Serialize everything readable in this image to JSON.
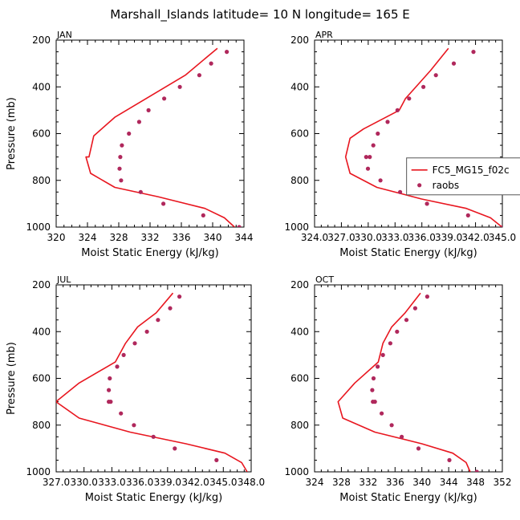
{
  "figure_title": "Marshall_Islands   latitude= 10 N longitude= 165 E",
  "colors": {
    "model": "#e8161f",
    "obs": "#b0285c",
    "axis": "#000000",
    "legend_border": "#555555"
  },
  "legend": {
    "model_label": "FC5_MG15_f02c",
    "obs_label": "raobs",
    "placement": "right-middle of APR panel (clipped)"
  },
  "chart_data": [
    {
      "type": "line",
      "title": "JAN",
      "xlabel": "Moist Static Energy (kJ/kg)",
      "ylabel": "Pressure (mb)",
      "xlim": [
        320,
        344
      ],
      "ylim": [
        1000,
        200
      ],
      "xticks": [
        "320",
        "324",
        "328",
        "332",
        "336",
        "340",
        "344"
      ],
      "yticks": [
        "200",
        "400",
        "600",
        "800",
        "1000"
      ],
      "grid": false,
      "series": [
        {
          "name": "FC5_MG15_f02c",
          "style": "line",
          "x": [
            340.6,
            336.5,
            331.5,
            327.5,
            324.8,
            324.2,
            323.8,
            324.4,
            327.5,
            333.0,
            339.0,
            341.5,
            342.8
          ],
          "y": [
            235,
            350,
            450,
            530,
            610,
            700,
            700,
            770,
            830,
            870,
            920,
            960,
            1000
          ]
        },
        {
          "name": "raobs",
          "style": "markers",
          "x": [
            341.8,
            339.8,
            338.3,
            335.8,
            333.8,
            331.8,
            330.6,
            329.3,
            328.4,
            328.2,
            328.1,
            328.3,
            330.8,
            333.7,
            338.8,
            343.4
          ],
          "y": [
            250,
            300,
            350,
            400,
            450,
            500,
            550,
            600,
            650,
            700,
            750,
            800,
            850,
            900,
            950,
            1000
          ]
        }
      ]
    },
    {
      "type": "line",
      "title": "APR",
      "xlabel": "Moist Static Energy (kJ/kg)",
      "ylabel": "",
      "xlim": [
        324.03,
        345.03
      ],
      "ylim": [
        1000,
        200
      ],
      "xticks": [
        "324.0",
        "327.0",
        "330.0",
        "333.0",
        "336.0",
        "339.0",
        "342.0",
        "345.0"
      ],
      "yticks": [
        "200",
        "400",
        "600",
        "800",
        "1000"
      ],
      "grid": false,
      "series": [
        {
          "name": "FC5_MG15_f02c",
          "style": "line",
          "x": [
            339.0,
            337.0,
            334.2,
            333.5,
            329.5,
            328.0,
            327.5,
            328.0,
            331.0,
            336.0,
            341.0,
            343.7,
            345.0
          ],
          "y": [
            235,
            330,
            450,
            500,
            580,
            620,
            700,
            770,
            830,
            880,
            920,
            960,
            1000
          ]
        },
        {
          "name": "raobs",
          "style": "markers",
          "x": [
            341.8,
            339.6,
            337.6,
            336.2,
            334.6,
            333.3,
            332.2,
            331.1,
            330.6,
            330.2,
            329.8,
            330.0,
            331.4,
            333.6,
            336.6,
            341.2,
            345.1
          ],
          "y": [
            250,
            300,
            350,
            400,
            450,
            500,
            550,
            600,
            650,
            700,
            700,
            750,
            800,
            850,
            900,
            950,
            1000
          ]
        }
      ]
    },
    {
      "type": "line",
      "title": "JUL",
      "xlabel": "Moist Static Energy (kJ/kg)",
      "ylabel": "Pressure (mb)",
      "xlim": [
        327.03,
        348.03
      ],
      "ylim": [
        1000,
        200
      ],
      "xticks": [
        "327.0",
        "330.0",
        "333.0",
        "336.0",
        "339.0",
        "342.0",
        "345.0",
        "348.0"
      ],
      "yticks": [
        "200",
        "400",
        "600",
        "800",
        "1000"
      ],
      "grid": false,
      "series": [
        {
          "name": "FC5_MG15_f02c",
          "style": "line",
          "x": [
            339.6,
            337.8,
            335.8,
            334.5,
            333.4,
            329.5,
            327.0,
            329.5,
            335.0,
            341.0,
            345.2,
            347.0,
            347.6
          ],
          "y": [
            235,
            320,
            380,
            450,
            530,
            620,
            700,
            770,
            830,
            880,
            920,
            960,
            1000
          ]
        },
        {
          "name": "raobs",
          "style": "markers",
          "x": [
            340.3,
            339.3,
            338.0,
            336.8,
            335.5,
            334.3,
            333.6,
            332.8,
            332.7,
            332.7,
            332.9,
            334.0,
            335.4,
            337.5,
            339.8,
            344.3,
            348.3
          ],
          "y": [
            250,
            300,
            350,
            400,
            450,
            500,
            550,
            600,
            650,
            700,
            700,
            750,
            800,
            850,
            900,
            950,
            1000
          ]
        }
      ]
    },
    {
      "type": "line",
      "title": "OCT",
      "xlabel": "Moist Static Energy (kJ/kg)",
      "ylabel": "",
      "xlim": [
        324,
        352
      ],
      "ylim": [
        1000,
        200
      ],
      "xticks": [
        "324",
        "328",
        "332",
        "336",
        "340",
        "344",
        "348",
        "352"
      ],
      "yticks": [
        "200",
        "400",
        "600",
        "800",
        "1000"
      ],
      "grid": false,
      "series": [
        {
          "name": "FC5_MG15_f02c",
          "style": "line",
          "x": [
            339.8,
            337.5,
            335.5,
            334.2,
            333.5,
            330.0,
            327.5,
            328.2,
            333.0,
            340.0,
            344.6,
            346.6,
            347.2
          ],
          "y": [
            235,
            320,
            380,
            450,
            530,
            620,
            700,
            770,
            830,
            880,
            920,
            960,
            1000
          ]
        },
        {
          "name": "raobs",
          "style": "markers",
          "x": [
            340.8,
            339.0,
            337.7,
            336.3,
            335.3,
            334.2,
            333.4,
            332.8,
            332.6,
            332.7,
            333.0,
            334.0,
            335.5,
            337.0,
            339.5,
            344.1,
            348.2
          ],
          "y": [
            250,
            300,
            350,
            400,
            450,
            500,
            550,
            600,
            650,
            700,
            700,
            750,
            800,
            850,
            900,
            950,
            1000
          ]
        }
      ]
    }
  ]
}
